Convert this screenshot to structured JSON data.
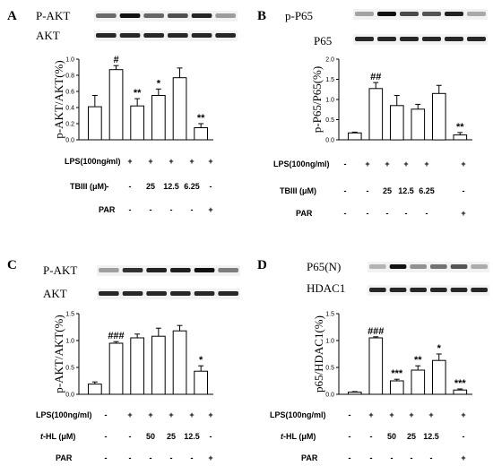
{
  "chart_data": [
    {
      "type": "bar",
      "panel": "A",
      "blots": [
        "P-AKT",
        "AKT"
      ],
      "ylabel": "p-AKT/AKT(%)",
      "ylim": [
        0,
        1.0
      ],
      "yticks": [
        "0.0",
        "0.2",
        "0.4",
        "0.6",
        "0.8",
        "1.0"
      ],
      "values": [
        0.41,
        0.87,
        0.42,
        0.55,
        0.77,
        0.15
      ],
      "errors": [
        0.14,
        0.05,
        0.09,
        0.08,
        0.12,
        0.05
      ],
      "annotations": [
        "",
        "#",
        "**",
        "*",
        "",
        "**"
      ],
      "conditions": [
        {
          "label": "LPS(100ng/ml)",
          "cells": [
            "-",
            "+",
            "+",
            "+",
            "+",
            "+"
          ]
        },
        {
          "label": "TBIII (μM)",
          "cells": [
            "-",
            "-",
            "25",
            "12.5",
            "6.25",
            "-"
          ]
        },
        {
          "label": "PAR",
          "cells": [
            "-",
            "-",
            "-",
            "-",
            "-",
            "+"
          ]
        }
      ]
    },
    {
      "type": "bar",
      "panel": "B",
      "blots": [
        "p-P65",
        "P65"
      ],
      "ylabel": "p-P65/P65(%)",
      "ylim": [
        0,
        2.0
      ],
      "yticks": [
        "0.0",
        "0.5",
        "1.0",
        "1.5",
        "2.0"
      ],
      "values": [
        0.17,
        1.27,
        0.85,
        0.76,
        1.15,
        0.12
      ],
      "errors": [
        0.02,
        0.15,
        0.25,
        0.12,
        0.2,
        0.06
      ],
      "annotations": [
        "",
        "##",
        "",
        "",
        "",
        "**"
      ],
      "conditions": [
        {
          "label": "LPS(100ng/ml)",
          "cells": [
            "-",
            "+",
            "+",
            "+",
            "+",
            "+"
          ]
        },
        {
          "label": "TBIII (μM)",
          "cells": [
            "-",
            "-",
            "25",
            "12.5",
            "6.25",
            "-"
          ]
        },
        {
          "label": "PAR",
          "cells": [
            "-",
            "-",
            "-",
            "-",
            "-",
            "+"
          ]
        }
      ]
    },
    {
      "type": "bar",
      "panel": "C",
      "blots": [
        "P-AKT",
        "AKT"
      ],
      "ylabel": "p-AKT/AKT(%)",
      "ylim": [
        0,
        1.5
      ],
      "yticks": [
        "0.0",
        "0.5",
        "1.0",
        "1.5"
      ],
      "values": [
        0.19,
        0.95,
        1.05,
        1.08,
        1.18,
        0.43
      ],
      "errors": [
        0.04,
        0.03,
        0.07,
        0.15,
        0.1,
        0.1
      ],
      "annotations": [
        "",
        "###",
        "",
        "",
        "",
        "*"
      ],
      "conditions": [
        {
          "label": "LPS(100ng/ml)",
          "cells": [
            "-",
            "+",
            "+",
            "+",
            "+",
            "+"
          ]
        },
        {
          "label": "t-HL (μM)",
          "cells": [
            "-",
            "-",
            "50",
            "25",
            "12.5",
            "-"
          ]
        },
        {
          "label": "PAR",
          "cells": [
            "-",
            "-",
            "-",
            "-",
            "-",
            "+"
          ]
        }
      ]
    },
    {
      "type": "bar",
      "panel": "D",
      "blots": [
        "P65(N)",
        "HDAC1"
      ],
      "ylabel": "p65/HDAC1(%)",
      "ylim": [
        0,
        1.5
      ],
      "yticks": [
        "0.0",
        "0.5",
        "1.0",
        "1.5"
      ],
      "values": [
        0.04,
        1.05,
        0.25,
        0.45,
        0.63,
        0.08
      ],
      "errors": [
        0.01,
        0.02,
        0.03,
        0.08,
        0.12,
        0.02
      ],
      "annotations": [
        "",
        "###",
        "***",
        "**",
        "*",
        "***"
      ],
      "conditions": [
        {
          "label": "LPS(100ng/ml)",
          "cells": [
            "-",
            "+",
            "+",
            "+",
            "+",
            "+"
          ]
        },
        {
          "label": "t-HL (μM)",
          "cells": [
            "-",
            "-",
            "50",
            "25",
            "12.5",
            "-"
          ]
        },
        {
          "label": "PAR",
          "cells": [
            "-",
            "-",
            "-",
            "-",
            "-",
            "+"
          ]
        }
      ]
    }
  ]
}
